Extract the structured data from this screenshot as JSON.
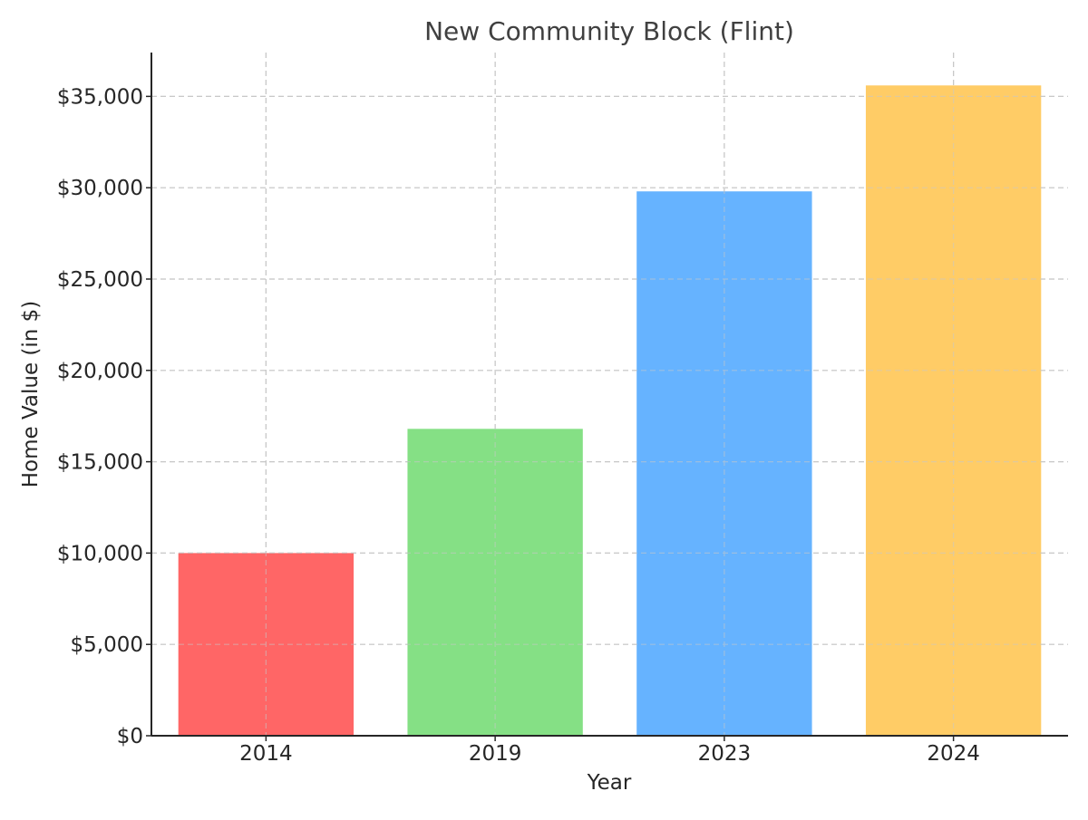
{
  "chart_data": {
    "type": "bar",
    "title": "New Community Block (Flint)",
    "xlabel": "Year",
    "ylabel": "Home Value (in $)",
    "categories": [
      "2014",
      "2019",
      "2023",
      "2024"
    ],
    "values": [
      10000,
      16800,
      29800,
      35600
    ],
    "colors": [
      "#ff6666",
      "#85e085",
      "#66b3ff",
      "#ffcc66"
    ],
    "ylim": [
      0,
      37400
    ],
    "yticks": [
      0,
      5000,
      10000,
      15000,
      20000,
      25000,
      30000,
      35000
    ],
    "ytick_labels": [
      "$0",
      "$5,000",
      "$10,000",
      "$15,000",
      "$20,000",
      "$25,000",
      "$30,000",
      "$35,000"
    ],
    "grid": true,
    "legend": "none"
  }
}
